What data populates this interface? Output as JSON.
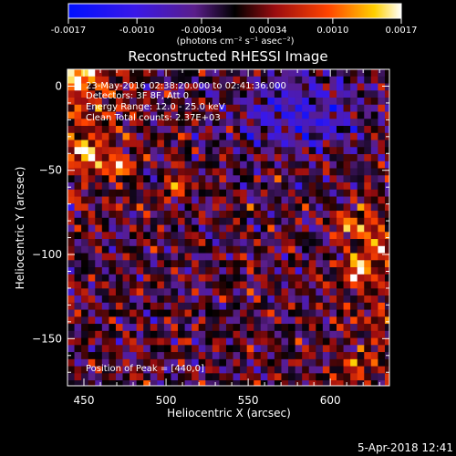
{
  "colorbar": {
    "ticks": [
      "-0.0017",
      "-0.0010",
      "-0.00034",
      "0.00034",
      "0.0010",
      "0.0017"
    ],
    "tick_values": [
      -0.0017,
      -0.001,
      -0.00034,
      0.00034,
      0.001,
      0.0017
    ],
    "range": [
      -0.0017,
      0.0017
    ],
    "unit_text": "(photons cm⁻² s⁻¹ asec⁻²)"
  },
  "plot": {
    "title": "Reconstructed RHESSI Image",
    "info_lines": [
      "23-May-2016 02:38:20.000 to 02:41:36.000",
      "Detectors: 3F 8F, Att 0",
      "Energy Range: 12.0 - 25.0 keV",
      "Clean     Total counts: 2.37E+03"
    ],
    "peak_text": "Position of Peak = [440,0]",
    "footer_date": "5-Apr-2018 12:41"
  },
  "chart_data": {
    "type": "heatmap",
    "title": "Reconstructed RHESSI Image",
    "xlabel": "Heliocentric X (arcsec)",
    "ylabel": "Heliocentric Y (arcsec)",
    "xlim": [
      440,
      636
    ],
    "ylim": [
      -178,
      10
    ],
    "xticks": [
      450,
      500,
      550,
      600
    ],
    "yticks": [
      0,
      -50,
      -100,
      -150
    ],
    "xtick_labels": [
      "450",
      "500",
      "550",
      "600"
    ],
    "ytick_labels": [
      "0",
      "−50",
      "−100",
      "−150"
    ],
    "colormap": "blue-purple-black-red-yellow-white",
    "value_range": [
      -0.0017,
      0.0017
    ],
    "peak_position": [
      440,
      0
    ],
    "bright_sources": [
      {
        "x": 447,
        "y": 5,
        "value": 0.0015
      },
      {
        "x": 452,
        "y": -40,
        "value": 0.0016
      },
      {
        "x": 472,
        "y": -47,
        "value": 0.0012
      },
      {
        "x": 507,
        "y": -60,
        "value": 0.0011
      },
      {
        "x": 612,
        "y": -82,
        "value": 0.0011
      },
      {
        "x": 617,
        "y": -110,
        "value": 0.0013
      },
      {
        "x": 627,
        "y": -95,
        "value": 0.0009
      },
      {
        "x": 615,
        "y": -168,
        "value": 0.0008
      }
    ],
    "negative_region": {
      "x": 585,
      "y": -15,
      "value": -0.0008
    }
  }
}
